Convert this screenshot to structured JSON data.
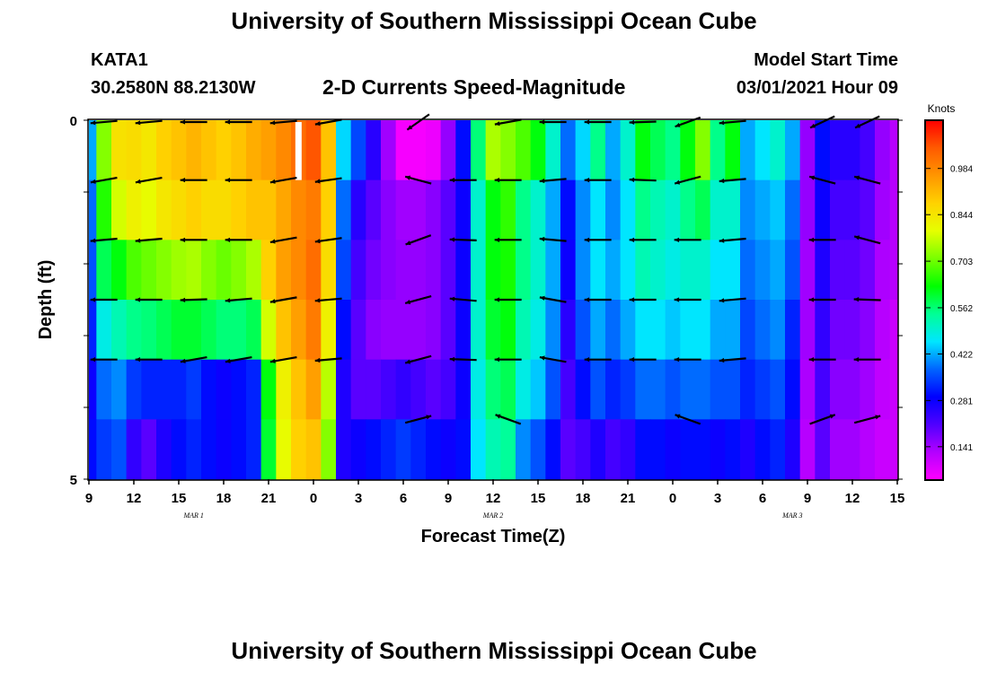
{
  "header": {
    "title": "University of Southern Mississippi Ocean Cube",
    "station": "KATA1",
    "coords": "30.2580N 88.2130W",
    "plot_title": "2-D Currents Speed-Magnitude",
    "model_start_label": "Model Start Time",
    "model_start_value": "03/01/2021 Hour 09"
  },
  "footer": {
    "title": "University of Southern Mississippi Ocean Cube"
  },
  "colors": {
    "colormap": [
      "#ff00ff",
      "#b400ff",
      "#5000ff",
      "#0000ff",
      "#0064ff",
      "#00e6ff",
      "#00ff96",
      "#00ff00",
      "#78ff00",
      "#e6ff00",
      "#ffd200",
      "#ff9600",
      "#ff5a00",
      "#ff0000"
    ],
    "arrow": "#000000",
    "axis": "#000000",
    "missing": "#ffffff"
  },
  "chart_data": {
    "type": "heatmap",
    "title": "2-D Currents Speed-Magnitude",
    "xlabel": "Forecast Time(Z)",
    "ylabel": "Depth (ft)",
    "units": "Knots",
    "x_tick_labels": [
      "9",
      "12",
      "15",
      "18",
      "21",
      "0",
      "3",
      "6",
      "9",
      "12",
      "15",
      "18",
      "21",
      "0",
      "3",
      "6",
      "9",
      "12",
      "15"
    ],
    "x_start_hour": 9,
    "x_end_hour": 63,
    "date_labels": [
      {
        "label": "MAR  1",
        "hour": 16
      },
      {
        "label": "MAR  2",
        "hour": 36
      },
      {
        "label": "MAR  3",
        "hour": 56
      }
    ],
    "y_tick_labels": [
      "0",
      "5"
    ],
    "depth_levels": [
      0,
      1,
      2,
      3,
      4,
      5
    ],
    "colorbar_ticks": [
      0.141,
      0.281,
      0.422,
      0.562,
      0.703,
      0.844,
      0.984
    ],
    "colorbar_range": [
      0.04,
      1.13
    ],
    "hours": [
      9,
      10,
      11,
      12,
      13,
      14,
      15,
      16,
      17,
      18,
      19,
      20,
      21,
      22,
      23,
      24,
      25,
      26,
      27,
      28,
      29,
      30,
      31,
      32,
      33,
      34,
      35,
      36,
      37,
      38,
      39,
      40,
      41,
      42,
      43,
      44,
      45,
      46,
      47,
      48,
      49,
      50,
      51,
      52,
      53,
      54,
      55,
      56,
      57,
      58,
      59,
      60,
      61,
      62,
      63
    ],
    "speed": [
      [
        0.42,
        0.72,
        0.85,
        0.86,
        0.84,
        0.88,
        0.9,
        0.92,
        0.9,
        0.88,
        0.9,
        0.93,
        0.95,
        0.98,
        1.02,
        1.05,
        0.9,
        0.45,
        0.35,
        0.25,
        0.14,
        0.05,
        0.05,
        0.06,
        0.15,
        0.3,
        0.56,
        0.75,
        0.72,
        0.68,
        0.62,
        0.5,
        0.38,
        0.45,
        0.55,
        0.42,
        0.5,
        0.62,
        0.58,
        0.55,
        0.62,
        0.72,
        0.55,
        0.62,
        0.42,
        0.46,
        0.5,
        0.42,
        0.15,
        0.3,
        0.25,
        0.25,
        0.22,
        0.15,
        0.12
      ],
      [
        0.38,
        0.65,
        0.78,
        0.82,
        0.8,
        0.84,
        0.86,
        0.88,
        0.86,
        0.86,
        0.88,
        0.9,
        0.9,
        0.94,
        0.98,
        1.0,
        0.88,
        0.38,
        0.25,
        0.2,
        0.16,
        0.14,
        0.14,
        0.16,
        0.2,
        0.28,
        0.5,
        0.62,
        0.66,
        0.55,
        0.5,
        0.42,
        0.3,
        0.4,
        0.46,
        0.4,
        0.46,
        0.55,
        0.52,
        0.5,
        0.55,
        0.58,
        0.5,
        0.5,
        0.4,
        0.42,
        0.44,
        0.38,
        0.15,
        0.28,
        0.22,
        0.22,
        0.2,
        0.14,
        0.12
      ],
      [
        0.36,
        0.58,
        0.62,
        0.68,
        0.7,
        0.72,
        0.74,
        0.75,
        0.72,
        0.7,
        0.72,
        0.75,
        0.88,
        0.95,
        0.98,
        1.02,
        0.86,
        0.35,
        0.22,
        0.18,
        0.16,
        0.15,
        0.15,
        0.16,
        0.2,
        0.28,
        0.5,
        0.62,
        0.64,
        0.55,
        0.5,
        0.42,
        0.28,
        0.4,
        0.46,
        0.42,
        0.46,
        0.52,
        0.5,
        0.48,
        0.5,
        0.5,
        0.46,
        0.46,
        0.38,
        0.4,
        0.42,
        0.36,
        0.14,
        0.26,
        0.2,
        0.2,
        0.18,
        0.13,
        0.12
      ],
      [
        0.32,
        0.48,
        0.52,
        0.55,
        0.56,
        0.58,
        0.6,
        0.6,
        0.58,
        0.56,
        0.56,
        0.58,
        0.78,
        0.9,
        0.95,
        1.0,
        0.82,
        0.3,
        0.2,
        0.16,
        0.15,
        0.15,
        0.15,
        0.16,
        0.2,
        0.28,
        0.5,
        0.6,
        0.62,
        0.52,
        0.48,
        0.4,
        0.25,
        0.36,
        0.42,
        0.38,
        0.42,
        0.46,
        0.46,
        0.44,
        0.46,
        0.46,
        0.42,
        0.42,
        0.35,
        0.38,
        0.4,
        0.32,
        0.14,
        0.24,
        0.18,
        0.18,
        0.16,
        0.12,
        0.1
      ],
      [
        0.28,
        0.38,
        0.4,
        0.34,
        0.32,
        0.32,
        0.32,
        0.34,
        0.3,
        0.28,
        0.3,
        0.32,
        0.62,
        0.82,
        0.9,
        0.95,
        0.76,
        0.26,
        0.2,
        0.2,
        0.22,
        0.24,
        0.22,
        0.2,
        0.22,
        0.28,
        0.48,
        0.56,
        0.58,
        0.48,
        0.44,
        0.36,
        0.22,
        0.3,
        0.36,
        0.32,
        0.34,
        0.38,
        0.38,
        0.36,
        0.38,
        0.38,
        0.36,
        0.36,
        0.32,
        0.34,
        0.36,
        0.3,
        0.13,
        0.22,
        0.16,
        0.16,
        0.14,
        0.11,
        0.1
      ],
      [
        0.3,
        0.34,
        0.36,
        0.24,
        0.2,
        0.26,
        0.3,
        0.32,
        0.3,
        0.28,
        0.3,
        0.32,
        0.6,
        0.8,
        0.88,
        0.9,
        0.72,
        0.26,
        0.28,
        0.3,
        0.32,
        0.34,
        0.32,
        0.3,
        0.28,
        0.3,
        0.46,
        0.52,
        0.54,
        0.4,
        0.36,
        0.3,
        0.2,
        0.22,
        0.26,
        0.22,
        0.24,
        0.3,
        0.3,
        0.28,
        0.3,
        0.3,
        0.28,
        0.3,
        0.26,
        0.3,
        0.32,
        0.26,
        0.12,
        0.2,
        0.14,
        0.14,
        0.12,
        0.1,
        0.1
      ]
    ],
    "missing_cells": [
      {
        "hour": 23,
        "depth": 0
      }
    ],
    "vector_hours": [
      10,
      13,
      16,
      19,
      22,
      25,
      31,
      34,
      37,
      40,
      43,
      46,
      49,
      52,
      55,
      58,
      61
    ],
    "vector_angles_deg": [
      [
        185,
        185,
        180,
        180,
        185,
        190,
        215,
        null,
        190,
        180,
        180,
        182,
        200,
        185,
        null,
        205,
        205
      ],
      [
        190,
        190,
        180,
        180,
        190,
        188,
        165,
        180,
        180,
        185,
        180,
        178,
        195,
        185,
        null,
        165,
        165
      ],
      [
        185,
        185,
        180,
        180,
        190,
        188,
        200,
        178,
        180,
        175,
        180,
        180,
        180,
        185,
        null,
        180,
        165
      ],
      [
        180,
        180,
        182,
        185,
        190,
        185,
        195,
        175,
        180,
        170,
        180,
        180,
        180,
        185,
        null,
        180,
        178
      ],
      [
        180,
        180,
        190,
        190,
        190,
        185,
        195,
        178,
        180,
        170,
        180,
        180,
        180,
        185,
        null,
        180,
        180
      ],
      [
        null,
        null,
        null,
        null,
        null,
        null,
        15,
        null,
        160,
        null,
        null,
        null,
        160,
        null,
        null,
        20,
        15
      ]
    ]
  }
}
